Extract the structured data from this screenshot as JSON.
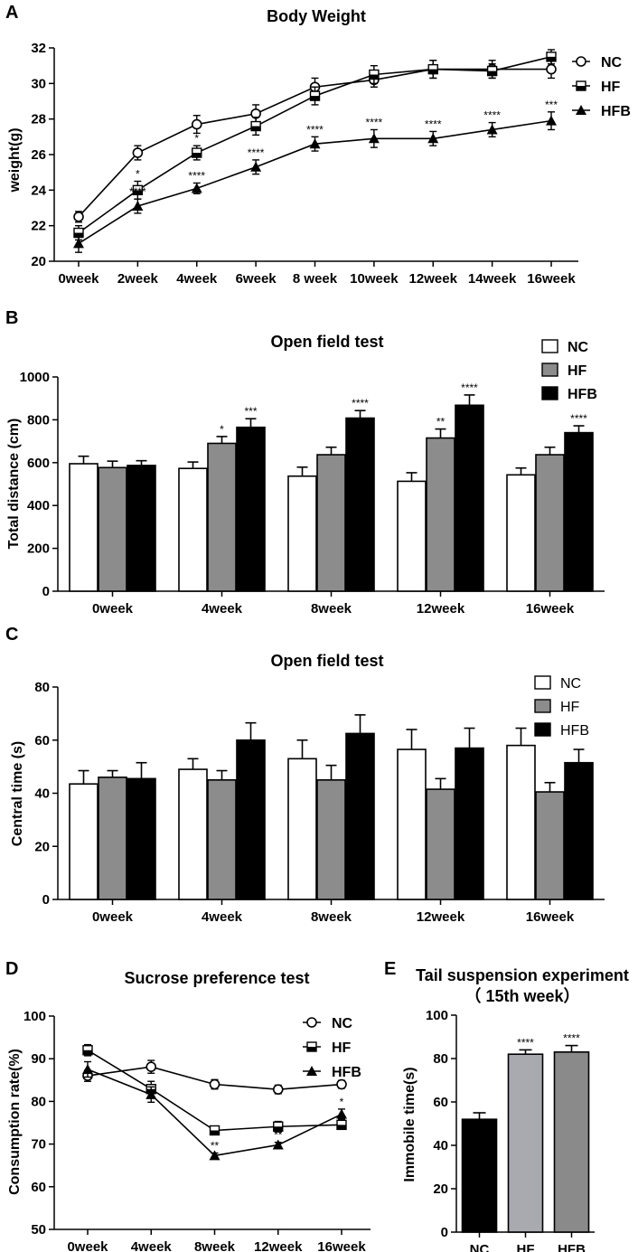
{
  "chart_data": [
    {
      "panel": "A",
      "type": "line",
      "title": "Body Weight",
      "xlabel": "",
      "ylabel": "weight(g)",
      "categories": [
        "0week",
        "2week",
        "4week",
        "6week",
        "8 week",
        "10week",
        "12week",
        "14week",
        "16week"
      ],
      "ylim": [
        20,
        32
      ],
      "yticks": [
        "20",
        "22",
        "24",
        "26",
        "28",
        "30",
        "32"
      ],
      "legend": "top-right",
      "series": [
        {
          "name": "NC",
          "marker": "circle",
          "values": [
            22.5,
            26.1,
            27.7,
            28.3,
            29.8,
            30.2,
            30.8,
            30.8,
            30.8
          ],
          "errors": [
            0.3,
            0.4,
            0.5,
            0.5,
            0.5,
            0.4,
            0.5,
            0.5,
            0.5
          ]
        },
        {
          "name": "HF",
          "marker": "square",
          "values": [
            21.6,
            24.0,
            26.1,
            27.6,
            29.3,
            30.5,
            30.8,
            30.7,
            31.5
          ],
          "errors": [
            0.4,
            0.5,
            0.4,
            0.5,
            0.5,
            0.5,
            0.5,
            0.4,
            0.4
          ]
        },
        {
          "name": "HFB",
          "marker": "triangle",
          "values": [
            21.0,
            23.1,
            24.1,
            25.3,
            26.6,
            26.9,
            26.9,
            27.4,
            27.9
          ],
          "errors": [
            0.5,
            0.4,
            0.3,
            0.4,
            0.4,
            0.5,
            0.4,
            0.4,
            0.5
          ]
        }
      ],
      "annotations": [
        {
          "category": 1,
          "series": "HF",
          "label": "*"
        },
        {
          "category": 1,
          "series": "HFB",
          "label": "****"
        },
        {
          "category": 2,
          "series": "HF",
          "label": "*"
        },
        {
          "category": 2,
          "series": "HFB",
          "label": "****"
        },
        {
          "category": 3,
          "series": "HFB",
          "label": "****"
        },
        {
          "category": 4,
          "series": "HFB",
          "label": "****"
        },
        {
          "category": 5,
          "series": "HFB",
          "label": "****"
        },
        {
          "category": 6,
          "series": "HFB",
          "label": "****"
        },
        {
          "category": 7,
          "series": "HFB",
          "label": "****"
        },
        {
          "category": 8,
          "series": "HFB",
          "label": "***"
        }
      ]
    },
    {
      "panel": "B",
      "type": "bar",
      "title": "Open field test",
      "xlabel": "",
      "ylabel": "Total distance (cm)",
      "categories": [
        "0week",
        "4week",
        "8week",
        "12week",
        "16week"
      ],
      "ylim": [
        0,
        1000
      ],
      "yticks": [
        "0",
        "200",
        "400",
        "600",
        "800",
        "1000"
      ],
      "legend": "top-right",
      "series": [
        {
          "name": "NC",
          "color": "#ffffff",
          "values": [
            595,
            573,
            537,
            513,
            543
          ],
          "errors": [
            35,
            30,
            42,
            40,
            32
          ]
        },
        {
          "name": "HF",
          "color": "#8c8c8c",
          "values": [
            577,
            690,
            637,
            715,
            637
          ],
          "errors": [
            30,
            32,
            35,
            42,
            35
          ]
        },
        {
          "name": "HFB",
          "color": "#000000",
          "values": [
            587,
            765,
            808,
            868,
            740
          ],
          "errors": [
            22,
            40,
            35,
            48,
            32
          ]
        }
      ],
      "annotations": [
        {
          "category": 1,
          "series": "HF",
          "label": "*"
        },
        {
          "category": 1,
          "series": "HFB",
          "label": "***"
        },
        {
          "category": 2,
          "series": "HFB",
          "label": "****"
        },
        {
          "category": 3,
          "series": "HF",
          "label": "**"
        },
        {
          "category": 3,
          "series": "HFB",
          "label": "****"
        },
        {
          "category": 4,
          "series": "HFB",
          "label": "****"
        }
      ]
    },
    {
      "panel": "C",
      "type": "bar",
      "title": "Open field test",
      "xlabel": "",
      "ylabel": "Central time (s)",
      "categories": [
        "0week",
        "4week",
        "8week",
        "12week",
        "16week"
      ],
      "ylim": [
        0,
        80
      ],
      "yticks": [
        "0",
        "20",
        "40",
        "60",
        "80"
      ],
      "legend": "top-right",
      "series": [
        {
          "name": "NC",
          "color": "#ffffff",
          "values": [
            43.5,
            49,
            53,
            56.5,
            58
          ],
          "errors": [
            5,
            4,
            7,
            7.5,
            6.5
          ]
        },
        {
          "name": "HF",
          "color": "#8c8c8c",
          "values": [
            46,
            45,
            45,
            41.5,
            40.5
          ],
          "errors": [
            2.5,
            3.5,
            5.5,
            4,
            3.5
          ]
        },
        {
          "name": "HFB",
          "color": "#000000",
          "values": [
            45.5,
            60,
            62.5,
            57,
            51.5
          ],
          "errors": [
            6,
            6.5,
            7,
            7.5,
            5
          ]
        }
      ],
      "annotations": []
    },
    {
      "panel": "D",
      "type": "line",
      "title": "Sucrose preference test",
      "xlabel": "",
      "ylabel": "Consumption rate(%)",
      "categories": [
        "0week",
        "4week",
        "8week",
        "12week",
        "16week"
      ],
      "ylim": [
        50,
        100
      ],
      "yticks": [
        "50",
        "60",
        "70",
        "80",
        "90",
        "100"
      ],
      "legend": "top-right",
      "series": [
        {
          "name": "NC",
          "marker": "circle",
          "values": [
            86.0,
            88.1,
            84.0,
            82.8,
            84.0
          ],
          "errors": [
            1.3,
            1.5,
            1.1,
            1.0,
            0.9
          ]
        },
        {
          "name": "HF",
          "marker": "square",
          "values": [
            92.0,
            82.9,
            73.2,
            74.1,
            74.5
          ],
          "errors": [
            1.3,
            1.8,
            1.0,
            1.2,
            0.6
          ]
        },
        {
          "name": "HFB",
          "marker": "triangle",
          "values": [
            87.5,
            81.6,
            67.3,
            69.8,
            77.0
          ],
          "errors": [
            1.8,
            1.8,
            0.6,
            0.6,
            1.2
          ]
        }
      ],
      "annotations": [
        {
          "category": 2,
          "series": "HFB",
          "label": "**"
        },
        {
          "category": 3,
          "series": "HFB",
          "label": "**"
        },
        {
          "category": 4,
          "series": "HFB",
          "label": "*"
        }
      ]
    },
    {
      "panel": "E",
      "type": "bar",
      "title": "Tail suspension experiment",
      "subtitle": "（ 15th week）",
      "xlabel": "",
      "ylabel": "Immobile time(s)",
      "categories": [
        "NC",
        "HF",
        "HFB"
      ],
      "ylim": [
        0,
        100
      ],
      "yticks": [
        "0",
        "20",
        "40",
        "60",
        "80",
        "100"
      ],
      "colors": [
        "#000000",
        "#a9a9b0",
        "#8a8a8a"
      ],
      "values": [
        52,
        82,
        83
      ],
      "errors": [
        3,
        2,
        3
      ],
      "annotations": [
        {
          "category": 1,
          "label": "****"
        },
        {
          "category": 2,
          "label": "****"
        }
      ]
    }
  ]
}
